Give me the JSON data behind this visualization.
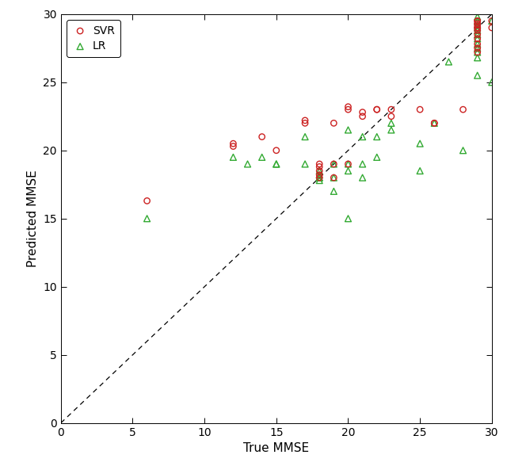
{
  "svr_x": [
    6,
    12,
    12,
    14,
    15,
    17,
    17,
    18,
    18,
    18,
    18,
    18,
    19,
    19,
    19,
    20,
    20,
    20,
    21,
    21,
    22,
    22,
    23,
    23,
    25,
    26,
    26,
    28,
    29,
    29,
    29,
    29,
    29,
    29,
    29,
    29,
    29,
    29,
    29,
    29,
    30,
    30
  ],
  "svr_y": [
    16.3,
    20.5,
    20.3,
    21.0,
    20.0,
    22.2,
    22.0,
    19.0,
    18.8,
    18.5,
    18.2,
    18.0,
    18.0,
    19.0,
    22.0,
    23.2,
    23.0,
    19.0,
    22.8,
    22.5,
    23.0,
    23.0,
    23.0,
    22.5,
    23.0,
    22.0,
    22.0,
    23.0,
    29.5,
    29.5,
    29.3,
    29.2,
    29.0,
    29.0,
    28.8,
    28.5,
    28.2,
    27.8,
    27.5,
    27.2,
    29.5,
    29.0
  ],
  "lr_x": [
    6,
    12,
    13,
    14,
    15,
    15,
    17,
    17,
    18,
    18,
    18,
    18,
    18,
    19,
    19,
    19,
    20,
    20,
    20,
    20,
    21,
    21,
    21,
    22,
    22,
    23,
    23,
    25,
    25,
    26,
    27,
    28,
    29,
    29,
    29,
    29,
    29,
    29,
    29,
    29,
    29,
    29,
    29,
    29,
    29,
    29,
    30,
    30
  ],
  "lr_y": [
    15.0,
    19.5,
    19.0,
    19.5,
    19.0,
    19.0,
    19.0,
    21.0,
    18.5,
    18.2,
    18.0,
    17.8,
    18.0,
    17.0,
    18.0,
    19.0,
    18.5,
    15.0,
    21.5,
    19.0,
    18.0,
    19.0,
    21.0,
    19.5,
    21.0,
    22.0,
    21.5,
    18.5,
    20.5,
    22.0,
    26.5,
    20.0,
    30.5,
    30.2,
    29.8,
    29.5,
    29.2,
    29.0,
    28.8,
    28.5,
    28.2,
    27.8,
    27.5,
    27.2,
    26.8,
    25.5,
    29.5,
    25.0
  ],
  "xlim": [
    0,
    30
  ],
  "ylim": [
    0,
    30
  ],
  "xticks": [
    0,
    5,
    10,
    15,
    20,
    25,
    30
  ],
  "yticks": [
    0,
    5,
    10,
    15,
    20,
    25,
    30
  ],
  "xlabel": "True MMSE",
  "ylabel": "Predicted MMSE",
  "svr_color": "#cc2222",
  "lr_color": "#33aa33",
  "bg_color": "#ffffff",
  "marker_size_svr": 28,
  "marker_size_lr": 32,
  "linewidth_marker": 1.0
}
